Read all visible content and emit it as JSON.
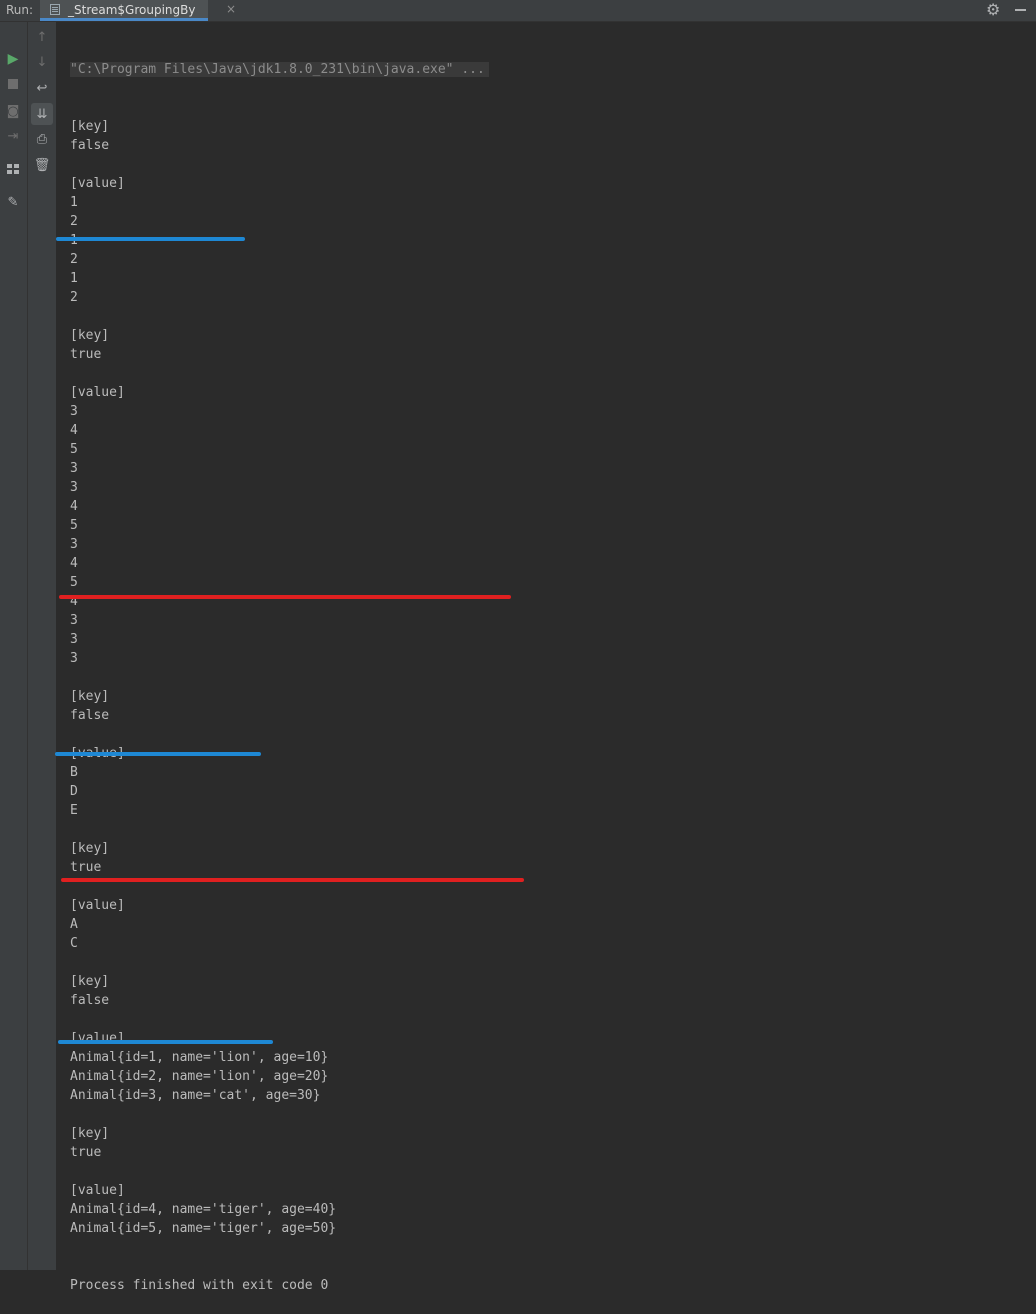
{
  "header": {
    "run_label": "Run:",
    "tab_title": "_Stream$GroupingBy",
    "tab_close": "×"
  },
  "icons": {
    "run": "play-icon",
    "stop": "stop-icon",
    "dump": "camera-icon",
    "restore": "login-icon",
    "layout": "layout-icon",
    "pin": "pin-icon",
    "up": "arrow-up-icon",
    "down": "arrow-down-icon",
    "wrap": "soft-wrap-icon",
    "scroll": "scroll-to-end-icon",
    "print": "print-icon",
    "clear": "trash-icon",
    "settings": "gear-icon",
    "hide": "minimize-icon"
  },
  "colors": {
    "separator_blue": "#1e88d4",
    "separator_red": "#e02020"
  },
  "console": {
    "command": "\"C:\\Program Files\\Java\\jdk1.8.0_231\\bin\\java.exe\" ...",
    "lines": [
      "[key]",
      "false",
      "",
      "[value]",
      "1",
      "2",
      "1",
      "2",
      "1",
      "2",
      "",
      "[key]",
      "true",
      "",
      "[value]",
      "3",
      "4",
      "5",
      "3",
      "3",
      "4",
      "5",
      "3",
      "4",
      "5",
      "4",
      "3",
      "3",
      "3",
      "",
      "[key]",
      "false",
      "",
      "[value]",
      "B",
      "D",
      "E",
      "",
      "[key]",
      "true",
      "",
      "[value]",
      "A",
      "C",
      "",
      "[key]",
      "false",
      "",
      "[value]",
      "Animal{id=1, name='lion', age=10}",
      "Animal{id=2, name='lion', age=20}",
      "Animal{id=3, name='cat', age=30}",
      "",
      "[key]",
      "true",
      "",
      "[value]",
      "Animal{id=4, name='tiger', age=40}",
      "Animal{id=5, name='tiger', age=50}",
      "",
      "",
      "Process finished with exit code 0"
    ]
  }
}
